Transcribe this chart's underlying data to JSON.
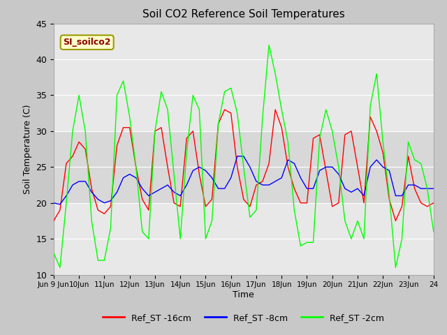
{
  "title": "Soil CO2 Reference Soil Temperatures",
  "xlabel": "Time",
  "ylabel": "Soil Temperature (C)",
  "ylim": [
    10,
    45
  ],
  "yticks": [
    10,
    15,
    20,
    25,
    30,
    35,
    40,
    45
  ],
  "annotation_text": "SI_soilco2",
  "annotation_color": "#8b0000",
  "annotation_bg": "#ffffcc",
  "annotation_border": "#999900",
  "legend_labels": [
    "Ref_ST -16cm",
    "Ref_ST -8cm",
    "Ref_ST -2cm"
  ],
  "legend_colors": [
    "red",
    "blue",
    "lime"
  ],
  "x": [
    9.0,
    9.25,
    9.5,
    9.75,
    10.0,
    10.25,
    10.5,
    10.75,
    11.0,
    11.25,
    11.5,
    11.75,
    12.0,
    12.25,
    12.5,
    12.75,
    13.0,
    13.25,
    13.5,
    13.75,
    14.0,
    14.25,
    14.5,
    14.75,
    15.0,
    15.25,
    15.5,
    15.75,
    16.0,
    16.25,
    16.5,
    16.75,
    17.0,
    17.25,
    17.5,
    17.75,
    18.0,
    18.25,
    18.5,
    18.75,
    19.0,
    19.25,
    19.5,
    19.75,
    20.0,
    20.25,
    20.5,
    20.75,
    21.0,
    21.25,
    21.5,
    21.75,
    22.0,
    22.25,
    22.5,
    22.75,
    23.0,
    23.25,
    23.5,
    23.75,
    24.0
  ],
  "red": [
    17.5,
    19.0,
    25.5,
    26.5,
    28.5,
    27.5,
    22.0,
    19.0,
    18.5,
    19.5,
    28.0,
    30.5,
    30.5,
    25.0,
    20.5,
    19.0,
    30.0,
    30.5,
    25.0,
    20.0,
    19.5,
    29.0,
    30.0,
    24.0,
    19.5,
    20.5,
    31.0,
    33.0,
    32.5,
    25.0,
    20.5,
    19.5,
    22.5,
    23.0,
    25.5,
    33.0,
    30.5,
    25.0,
    22.0,
    20.0,
    20.0,
    29.0,
    29.5,
    24.5,
    19.5,
    20.0,
    29.5,
    30.0,
    25.0,
    20.0,
    32.0,
    30.0,
    27.0,
    20.5,
    17.5,
    19.5,
    26.5,
    22.0,
    20.0,
    19.5,
    20.0
  ],
  "blue": [
    20.0,
    19.8,
    21.0,
    22.5,
    23.0,
    23.0,
    21.5,
    20.5,
    20.0,
    20.3,
    21.5,
    23.5,
    24.0,
    23.5,
    22.0,
    21.0,
    21.5,
    22.0,
    22.5,
    21.5,
    21.0,
    22.5,
    24.5,
    25.0,
    24.5,
    23.5,
    22.0,
    22.0,
    23.5,
    26.5,
    26.5,
    25.0,
    23.0,
    22.5,
    22.5,
    23.0,
    23.5,
    26.0,
    25.5,
    23.5,
    22.0,
    22.0,
    24.5,
    25.0,
    25.0,
    24.0,
    22.0,
    21.5,
    22.0,
    21.0,
    25.0,
    26.0,
    25.0,
    24.5,
    21.0,
    21.0,
    22.5,
    22.5,
    22.0,
    22.0,
    22.0
  ],
  "green": [
    13.0,
    11.0,
    20.0,
    30.0,
    35.0,
    30.0,
    17.5,
    12.0,
    12.0,
    16.5,
    35.0,
    37.0,
    32.0,
    25.0,
    16.0,
    15.0,
    30.0,
    35.5,
    33.0,
    24.0,
    15.0,
    27.0,
    35.0,
    33.0,
    15.0,
    17.5,
    31.0,
    35.5,
    36.0,
    32.5,
    25.0,
    18.0,
    19.0,
    32.0,
    42.0,
    38.0,
    33.0,
    28.5,
    19.0,
    14.0,
    14.5,
    14.5,
    29.0,
    33.0,
    30.0,
    25.0,
    17.5,
    15.0,
    17.5,
    15.0,
    33.5,
    38.0,
    28.5,
    21.0,
    11.0,
    15.0,
    28.5,
    26.0,
    25.5,
    22.0,
    16.0
  ]
}
